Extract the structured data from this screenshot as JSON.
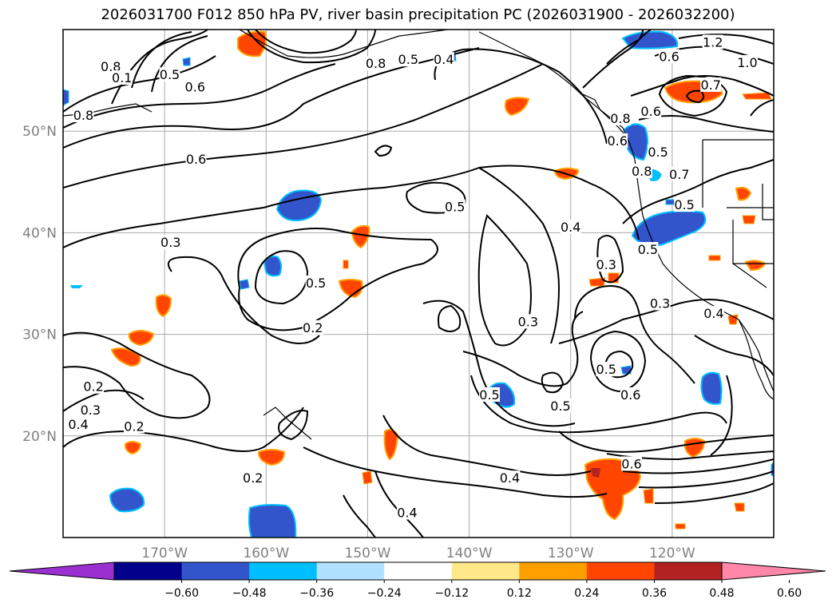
{
  "title": "2026031700 F012 850 hPa PV, river basin precipitation PC (2026031900 - 2026032200)",
  "map": {
    "lon_range": [
      -180,
      -110
    ],
    "lat_range": [
      10,
      60
    ],
    "lat_labels": [
      "50°N",
      "40°N",
      "30°N",
      "20°N"
    ],
    "lat_values": [
      50,
      40,
      30,
      20
    ],
    "lon_labels": [
      "170°W",
      "160°W",
      "150°W",
      "140°W",
      "130°W",
      "120°W"
    ],
    "lon_values": [
      -170,
      -160,
      -150,
      -140,
      -130,
      -120
    ],
    "contour_labels": [
      {
        "text": "0.8",
        "lon": -175.3,
        "lat": 56.3
      },
      {
        "text": "0.1",
        "lon": -174.2,
        "lat": 55.2
      },
      {
        "text": "0.5",
        "lon": -169.5,
        "lat": 55.5
      },
      {
        "text": "0.6",
        "lon": -167.0,
        "lat": 54.3
      },
      {
        "text": "0.8",
        "lon": -178.0,
        "lat": 51.5
      },
      {
        "text": "0.6",
        "lon": -166.9,
        "lat": 47.2
      },
      {
        "text": "0.3",
        "lon": -169.4,
        "lat": 39.0
      },
      {
        "text": "0.5",
        "lon": -155.1,
        "lat": 35.0
      },
      {
        "text": "0.2",
        "lon": -155.4,
        "lat": 30.6
      },
      {
        "text": "0.5",
        "lon": -141.4,
        "lat": 42.5
      },
      {
        "text": "0.4",
        "lon": -130.0,
        "lat": 40.5
      },
      {
        "text": "0.3",
        "lon": -126.5,
        "lat": 36.8
      },
      {
        "text": "0.3",
        "lon": -134.2,
        "lat": 31.2
      },
      {
        "text": "0.5",
        "lon": -126.5,
        "lat": 26.5
      },
      {
        "text": "0.6",
        "lon": -124.1,
        "lat": 24.0
      },
      {
        "text": "0.5",
        "lon": -131.0,
        "lat": 22.9
      },
      {
        "text": "0.5",
        "lon": -138.0,
        "lat": 24.0
      },
      {
        "text": "0.4",
        "lon": -136.0,
        "lat": 15.8
      },
      {
        "text": "0.6",
        "lon": -124.0,
        "lat": 17.2
      },
      {
        "text": "0.2",
        "lon": -177.0,
        "lat": 24.8
      },
      {
        "text": "0.3",
        "lon": -177.3,
        "lat": 22.5
      },
      {
        "text": "0.4",
        "lon": -178.5,
        "lat": 21.1
      },
      {
        "text": "0.2",
        "lon": -173.0,
        "lat": 20.9
      },
      {
        "text": "0.2",
        "lon": -161.3,
        "lat": 15.8
      },
      {
        "text": "0.4",
        "lon": -146.1,
        "lat": 12.4
      },
      {
        "text": "0.4",
        "lon": -142.5,
        "lat": 57.0
      },
      {
        "text": "0.5",
        "lon": -146.0,
        "lat": 57.0
      },
      {
        "text": "0.8",
        "lon": -149.2,
        "lat": 56.6
      },
      {
        "text": "0.8",
        "lon": -125.1,
        "lat": 51.2
      },
      {
        "text": "0.6",
        "lon": -125.4,
        "lat": 49.0
      },
      {
        "text": "0.8",
        "lon": -123.0,
        "lat": 46.0
      },
      {
        "text": "0.7",
        "lon": -119.3,
        "lat": 45.7
      },
      {
        "text": "0.5",
        "lon": -118.8,
        "lat": 42.7
      },
      {
        "text": "0.5",
        "lon": -122.4,
        "lat": 38.3
      },
      {
        "text": "0.3",
        "lon": -121.2,
        "lat": 33.0
      },
      {
        "text": "0.4",
        "lon": -115.9,
        "lat": 32.0
      },
      {
        "text": "1.2",
        "lon": -116.0,
        "lat": 58.7
      },
      {
        "text": "1.0",
        "lon": -112.6,
        "lat": 56.7
      },
      {
        "text": "0.7",
        "lon": -116.2,
        "lat": 54.5
      },
      {
        "text": "0.6",
        "lon": -120.3,
        "lat": 57.3
      },
      {
        "text": "0.6",
        "lon": -122.1,
        "lat": 51.9
      },
      {
        "text": "0.5",
        "lon": -121.4,
        "lat": 47.9
      }
    ]
  },
  "colorbar": {
    "colors": [
      "#9b30d0",
      "#00008b",
      "#3355cc",
      "#00bfff",
      "#b0e2ff",
      "#ffffff",
      "#ffe88a",
      "#ffa000",
      "#ff4500",
      "#b22222",
      "#ff88aa"
    ],
    "tick_labels": [
      "−0.60",
      "−0.48",
      "−0.36",
      "−0.24",
      "−0.12",
      "0.12",
      "0.24",
      "0.36",
      "0.48",
      "0.60"
    ]
  }
}
